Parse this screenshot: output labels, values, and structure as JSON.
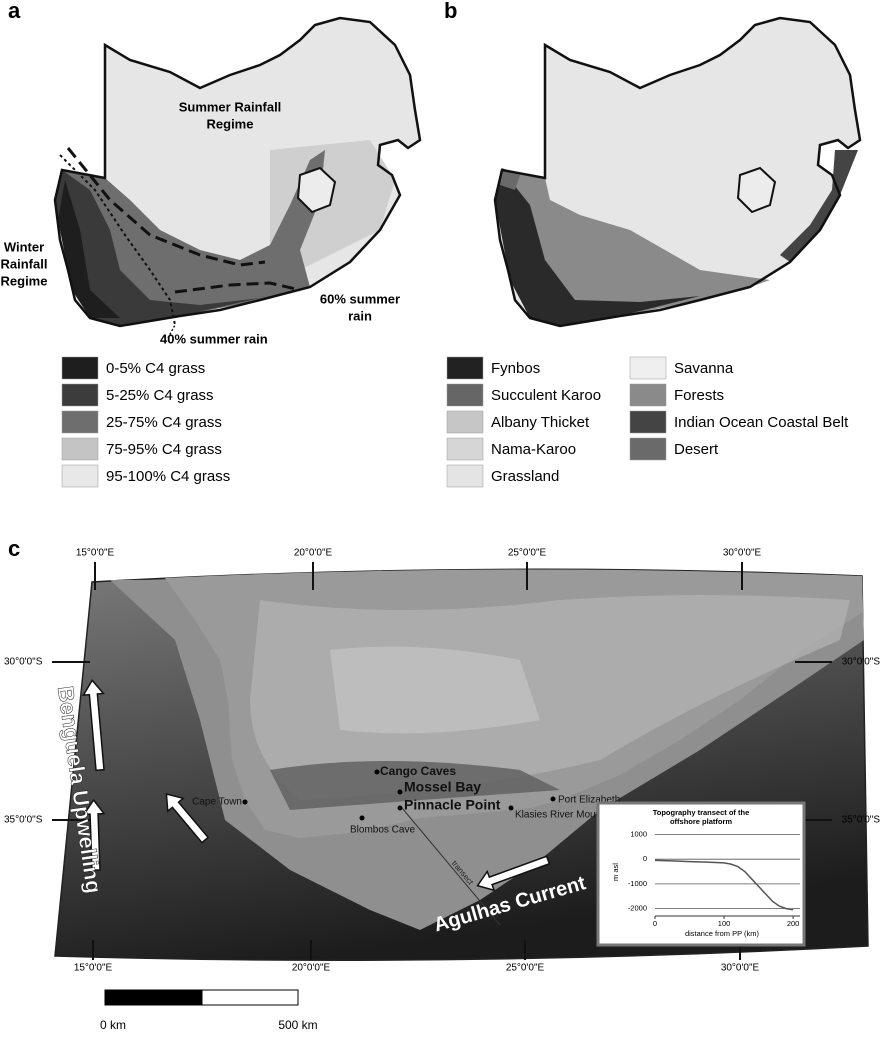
{
  "panel_a": {
    "label": "a",
    "annotations": [
      {
        "lines": [
          "Summer Rainfall",
          "Regime"
        ]
      },
      {
        "lines": [
          "Winter",
          "Rainfall",
          "Regime"
        ]
      },
      {
        "lines": [
          "60% summer",
          "rain"
        ]
      },
      {
        "lines": [
          "40% summer rain"
        ]
      }
    ],
    "legend": [
      {
        "label": "0-5% C4 grass",
        "color": "#1e1e1e"
      },
      {
        "label": "5-25% C4 grass",
        "color": "#3c3c3c"
      },
      {
        "label": "25-75% C4 grass",
        "color": "#6e6e6e"
      },
      {
        "label": "75-95% C4 grass",
        "color": "#c4c4c4"
      },
      {
        "label": "95-100% C4 grass",
        "color": "#e8e8e8"
      }
    ]
  },
  "panel_b": {
    "label": "b",
    "legend": [
      {
        "label": "Fynbos",
        "color": "#222222"
      },
      {
        "label": "Succulent Karoo",
        "color": "#666666"
      },
      {
        "label": "Albany Thicket",
        "color": "#c6c6c6"
      },
      {
        "label": "Nama-Karoo",
        "color": "#d6d6d6"
      },
      {
        "label": "Grassland",
        "color": "#e4e4e4"
      },
      {
        "label": "Savanna",
        "color": "#efefef"
      },
      {
        "label": "Forests",
        "color": "#8a8a8a"
      },
      {
        "label": "Indian Ocean Coastal Belt",
        "color": "#444444"
      },
      {
        "label": "Desert",
        "color": "#6a6a6a"
      }
    ]
  },
  "panel_c": {
    "label": "c",
    "longitudes_top": [
      "15°0'0\"E",
      "20°0'0\"E",
      "25°0'0\"E",
      "30°0'0\"E"
    ],
    "longitudes_bottom": [
      "15°0'0\"E",
      "20°0'0\"E",
      "25°0'0\"E",
      "30°0'0\"E"
    ],
    "latitudes_left": [
      "30°0'0\"S",
      "35°0'0\"S"
    ],
    "latitudes_right": [
      "30°0'0\"S",
      "35°0'0\"S"
    ],
    "places": [
      "Cape Town",
      "Cango Caves",
      "Mossel Bay",
      "Pinnacle Point",
      "Blombos Cave",
      "Klasies River Mouth",
      "Port Elizabeth"
    ],
    "currents": [
      "Benguela Upwelling",
      "Agulhas Current"
    ],
    "transect_label": "transect",
    "scale_bar": [
      "0 km",
      "500 km"
    ]
  },
  "inset_chart": {
    "type": "line",
    "title": [
      "Topography transect of the",
      "offshore platform"
    ],
    "x_label": "distance from PP (km)",
    "y_label": "m asl",
    "x": [
      0,
      25,
      50,
      75,
      100,
      110,
      120,
      130,
      140,
      150,
      160,
      170,
      180,
      190,
      200
    ],
    "values": [
      -50,
      -70,
      -100,
      -120,
      -150,
      -200,
      -300,
      -500,
      -800,
      -1100,
      -1400,
      -1700,
      -1900,
      -2000,
      -2050
    ],
    "color": "#555555",
    "xlim": [
      0,
      210
    ],
    "ylim": [
      -2300,
      1100
    ],
    "xticks": [
      0,
      100,
      200
    ],
    "yticks": [
      1000,
      0,
      -1000,
      -2000
    ],
    "grid": true
  }
}
